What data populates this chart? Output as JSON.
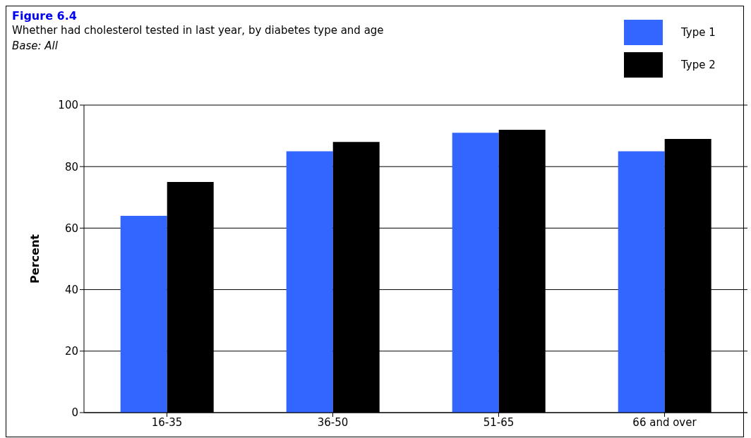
{
  "chart_data": {
    "type": "bar",
    "title": "Figure 6.4",
    "subtitle": "Whether had cholesterol tested in last year, by diabetes type and age",
    "annotations": [
      "Base: All"
    ],
    "ylabel": "Percent",
    "categories": [
      "16-35",
      "36-50",
      "51-65",
      "66 and over"
    ],
    "series": [
      {
        "name": "Type 1",
        "color": "#3366ff",
        "values": [
          64,
          85,
          91,
          85
        ]
      },
      {
        "name": "Type 2",
        "color": "#000000",
        "values": [
          75,
          88,
          92,
          89
        ]
      }
    ],
    "ylim": [
      0,
      100
    ],
    "yticks": [
      0,
      20,
      40,
      60,
      80,
      100
    ],
    "grid": "y",
    "legend": "top right"
  }
}
